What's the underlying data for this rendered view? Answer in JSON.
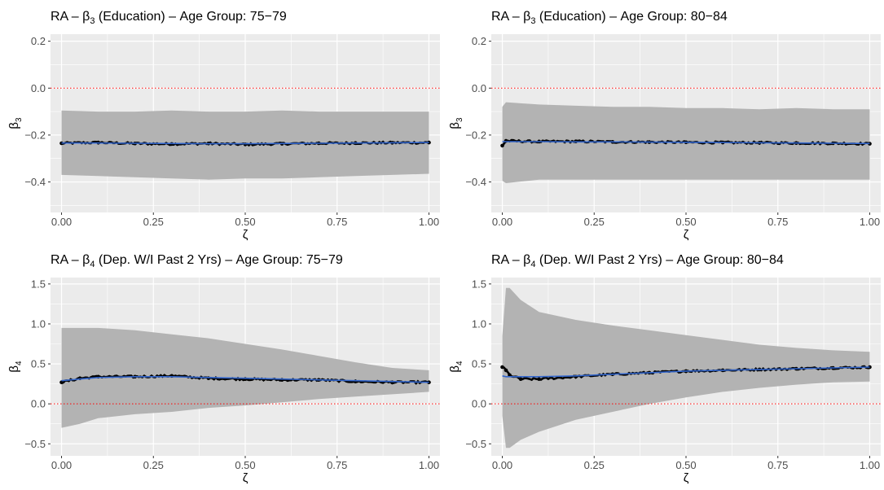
{
  "chart_data": [
    {
      "type": "scatter",
      "title_prefix": "RA – ",
      "title_symbol": "β",
      "title_subscript": "3",
      "title_suffix": " (Education) – Age Group: 75−79",
      "xlabel": "ζ",
      "ylabel_symbol": "β",
      "ylabel_subscript": "3",
      "xlim": [
        -0.03,
        1.03
      ],
      "ylim": [
        -0.53,
        0.23
      ],
      "xticks": [
        0,
        0.25,
        0.5,
        0.75,
        1
      ],
      "xtick_labels": [
        "0.00",
        "0.25",
        "0.50",
        "0.75",
        "1.00"
      ],
      "yticks": [
        -0.4,
        -0.2,
        0.0,
        0.2
      ],
      "ytick_labels": [
        "−0.4",
        "−0.2",
        "0.0",
        "0.2"
      ],
      "reference_line_y": 0,
      "grid": true,
      "x": [
        0,
        0.1,
        0.2,
        0.3,
        0.4,
        0.5,
        0.6,
        0.7,
        0.8,
        0.9,
        1.0
      ],
      "estimate": [
        -0.235,
        -0.232,
        -0.236,
        -0.238,
        -0.236,
        -0.24,
        -0.237,
        -0.235,
        -0.234,
        -0.233,
        -0.232
      ],
      "smooth": [
        -0.234,
        -0.234,
        -0.235,
        -0.236,
        -0.237,
        -0.237,
        -0.236,
        -0.235,
        -0.234,
        -0.233,
        -0.232
      ],
      "ci_lower": [
        -0.37,
        -0.375,
        -0.38,
        -0.385,
        -0.39,
        -0.385,
        -0.385,
        -0.38,
        -0.375,
        -0.37,
        -0.365
      ],
      "ci_upper": [
        -0.095,
        -0.1,
        -0.1,
        -0.095,
        -0.1,
        -0.1,
        -0.095,
        -0.1,
        -0.1,
        -0.1,
        -0.1
      ],
      "colors": {
        "ci_band": "#b3b3b3",
        "points": "#000000",
        "smooth": "#3366cc",
        "reference": "#ff0000",
        "panel": "#ebebeb"
      }
    },
    {
      "type": "scatter",
      "title_prefix": "RA – ",
      "title_symbol": "β",
      "title_subscript": "3",
      "title_suffix": " (Education) – Age Group: 80−84",
      "xlabel": "ζ",
      "ylabel_symbol": "β",
      "ylabel_subscript": "3",
      "xlim": [
        -0.03,
        1.03
      ],
      "ylim": [
        -0.53,
        0.23
      ],
      "xticks": [
        0,
        0.25,
        0.5,
        0.75,
        1
      ],
      "xtick_labels": [
        "0.00",
        "0.25",
        "0.50",
        "0.75",
        "1.00"
      ],
      "yticks": [
        -0.4,
        -0.2,
        0.0,
        0.2
      ],
      "ytick_labels": [
        "−0.4",
        "−0.2",
        "0.0",
        "0.2"
      ],
      "reference_line_y": 0,
      "grid": true,
      "x": [
        0,
        0.01,
        0.1,
        0.2,
        0.3,
        0.4,
        0.5,
        0.6,
        0.7,
        0.8,
        0.9,
        1.0
      ],
      "estimate": [
        -0.245,
        -0.225,
        -0.228,
        -0.227,
        -0.229,
        -0.23,
        -0.231,
        -0.232,
        -0.233,
        -0.234,
        -0.235,
        -0.237
      ],
      "smooth": [
        -0.228,
        -0.228,
        -0.228,
        -0.229,
        -0.229,
        -0.23,
        -0.231,
        -0.232,
        -0.233,
        -0.234,
        -0.235,
        -0.236
      ],
      "ci_lower": [
        -0.395,
        -0.405,
        -0.39,
        -0.39,
        -0.39,
        -0.39,
        -0.39,
        -0.39,
        -0.39,
        -0.39,
        -0.39,
        -0.39
      ],
      "ci_upper": [
        -0.08,
        -0.06,
        -0.07,
        -0.075,
        -0.08,
        -0.08,
        -0.085,
        -0.085,
        -0.09,
        -0.085,
        -0.09,
        -0.09
      ],
      "colors": {
        "ci_band": "#b3b3b3",
        "points": "#000000",
        "smooth": "#3366cc",
        "reference": "#ff0000",
        "panel": "#ebebeb"
      }
    },
    {
      "type": "scatter",
      "title_prefix": "RA – ",
      "title_symbol": "β",
      "title_subscript": "4",
      "title_suffix": " (Dep. W/I Past 2 Yrs) – Age Group: 75−79",
      "xlabel": "ζ",
      "ylabel_symbol": "β",
      "ylabel_subscript": "4",
      "xlim": [
        -0.03,
        1.03
      ],
      "ylim": [
        -0.65,
        1.58
      ],
      "xticks": [
        0,
        0.25,
        0.5,
        0.75,
        1
      ],
      "xtick_labels": [
        "0.00",
        "0.25",
        "0.50",
        "0.75",
        "1.00"
      ],
      "yticks": [
        -0.5,
        0.0,
        0.5,
        1.0,
        1.5
      ],
      "ytick_labels": [
        "−0.5",
        "0.0",
        "0.5",
        "1.0",
        "1.5"
      ],
      "reference_line_y": 0,
      "grid": true,
      "x": [
        0,
        0.05,
        0.1,
        0.2,
        0.3,
        0.4,
        0.5,
        0.6,
        0.7,
        0.8,
        0.9,
        1.0
      ],
      "estimate": [
        0.27,
        0.32,
        0.34,
        0.34,
        0.35,
        0.32,
        0.31,
        0.3,
        0.3,
        0.28,
        0.27,
        0.27
      ],
      "smooth": [
        0.29,
        0.31,
        0.33,
        0.34,
        0.34,
        0.33,
        0.32,
        0.31,
        0.3,
        0.29,
        0.28,
        0.27
      ],
      "ci_lower": [
        -0.3,
        -0.25,
        -0.18,
        -0.13,
        -0.1,
        -0.05,
        -0.02,
        0.02,
        0.06,
        0.09,
        0.12,
        0.15
      ],
      "ci_upper": [
        0.95,
        0.95,
        0.95,
        0.92,
        0.87,
        0.82,
        0.75,
        0.68,
        0.6,
        0.52,
        0.45,
        0.42
      ],
      "colors": {
        "ci_band": "#b3b3b3",
        "points": "#000000",
        "smooth": "#3366cc",
        "reference": "#ff0000",
        "panel": "#ebebeb"
      }
    },
    {
      "type": "scatter",
      "title_prefix": "RA – ",
      "title_symbol": "β",
      "title_subscript": "4",
      "title_suffix": " (Dep. W/I Past 2 Yrs) – Age Group: 80−84",
      "xlabel": "ζ",
      "ylabel_symbol": "β",
      "ylabel_subscript": "4",
      "xlim": [
        -0.03,
        1.03
      ],
      "ylim": [
        -0.65,
        1.58
      ],
      "xticks": [
        0,
        0.25,
        0.5,
        0.75,
        1
      ],
      "xtick_labels": [
        "0.00",
        "0.25",
        "0.50",
        "0.75",
        "1.00"
      ],
      "yticks": [
        -0.5,
        0.0,
        0.5,
        1.0,
        1.5
      ],
      "ytick_labels": [
        "−0.5",
        "0.0",
        "0.5",
        "1.0",
        "1.5"
      ],
      "reference_line_y": 0,
      "grid": true,
      "x": [
        0,
        0.01,
        0.02,
        0.05,
        0.1,
        0.2,
        0.3,
        0.4,
        0.5,
        0.6,
        0.7,
        0.8,
        0.9,
        1.0
      ],
      "estimate": [
        0.46,
        0.42,
        0.36,
        0.31,
        0.31,
        0.34,
        0.37,
        0.39,
        0.41,
        0.42,
        0.43,
        0.44,
        0.45,
        0.46
      ],
      "smooth": [
        0.35,
        0.34,
        0.34,
        0.34,
        0.34,
        0.35,
        0.37,
        0.39,
        0.41,
        0.42,
        0.43,
        0.44,
        0.45,
        0.46
      ],
      "ci_lower": [
        -0.15,
        -0.55,
        -0.55,
        -0.45,
        -0.35,
        -0.2,
        -0.1,
        0.0,
        0.08,
        0.15,
        0.2,
        0.24,
        0.27,
        0.28
      ],
      "ci_upper": [
        0.85,
        1.45,
        1.45,
        1.3,
        1.15,
        1.05,
        0.98,
        0.92,
        0.86,
        0.8,
        0.74,
        0.7,
        0.67,
        0.65
      ],
      "colors": {
        "ci_band": "#b3b3b3",
        "points": "#000000",
        "smooth": "#3366cc",
        "reference": "#ff0000",
        "panel": "#ebebeb"
      }
    }
  ]
}
